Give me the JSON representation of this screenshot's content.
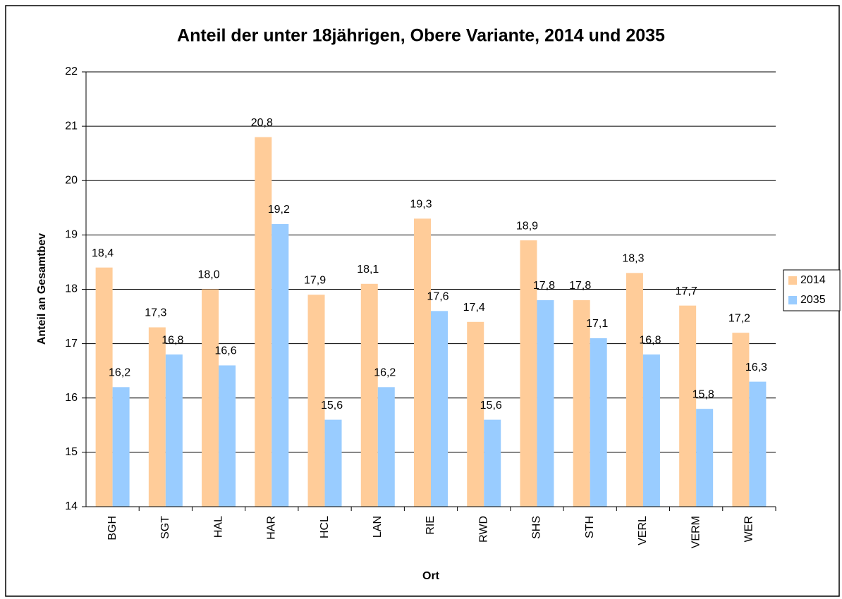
{
  "chart_data": {
    "type": "bar",
    "title": "Anteil der unter 18jährigen, Obere Variante, 2014 und 2035",
    "y_label": "Anteil an Gesamtbev",
    "x_label": "Ort",
    "categories": [
      "BGH",
      "SGT",
      "HAL",
      "HAR",
      "HCL",
      "LAN",
      "RIE",
      "RWD",
      "SHS",
      "STH",
      "VERL",
      "VERM",
      "WER"
    ],
    "series": [
      {
        "name": "2014",
        "color": "#FFCC99",
        "values": [
          18.4,
          17.3,
          18.0,
          20.8,
          17.9,
          18.1,
          19.3,
          17.4,
          18.9,
          17.8,
          18.3,
          17.7,
          17.2
        ],
        "value_labels": [
          "18,4",
          "17,3",
          "18,0",
          "20,8",
          "17,9",
          "18,1",
          "19,3",
          "17,4",
          "18,9",
          "17,8",
          "18,3",
          "17,7",
          "17,2"
        ]
      },
      {
        "name": "2035",
        "color": "#99CCFF",
        "values": [
          16.2,
          16.8,
          16.6,
          19.2,
          15.6,
          16.2,
          17.6,
          15.6,
          17.8,
          17.1,
          16.8,
          15.8,
          16.3
        ],
        "value_labels": [
          "16,2",
          "16,8",
          "16,6",
          "19,2",
          "15,6",
          "16,2",
          "17,6",
          "15,6",
          "17,8",
          "17,1",
          "16,8",
          "15,8",
          "16,3"
        ]
      }
    ],
    "ylim": [
      14,
      22
    ],
    "yticks": [
      14,
      15,
      16,
      17,
      18,
      19,
      20,
      21,
      22
    ],
    "grid": true,
    "legend": "right"
  }
}
